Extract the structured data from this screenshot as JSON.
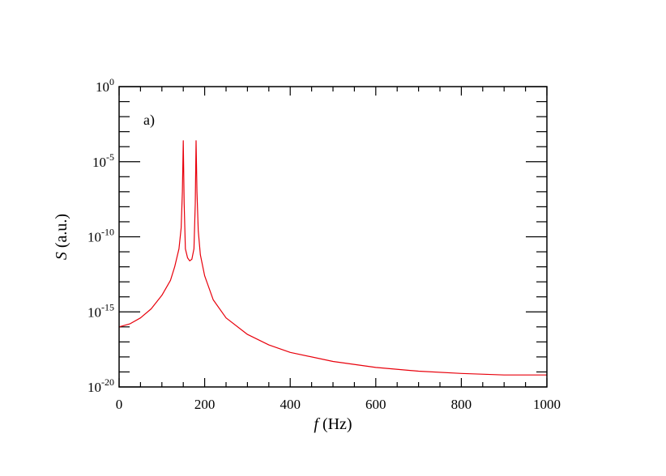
{
  "chart_data": {
    "type": "line",
    "panel_label": "a)",
    "xlabel": {
      "symbol": "f",
      "unit": " (Hz)"
    },
    "ylabel": {
      "symbol": "S",
      "unit": " (a.u.)"
    },
    "xlim": [
      0,
      1000
    ],
    "ylim_log10": [
      -20,
      0
    ],
    "yscale": "log",
    "x_ticks": [
      {
        "value": 0,
        "label": "0"
      },
      {
        "value": 200,
        "label": "200"
      },
      {
        "value": 400,
        "label": "400"
      },
      {
        "value": 600,
        "label": "600"
      },
      {
        "value": 800,
        "label": "800"
      },
      {
        "value": 1000,
        "label": "1000"
      }
    ],
    "y_ticks": [
      {
        "exp": 0,
        "base": "10",
        "sup": "0"
      },
      {
        "exp": -5,
        "base": "10",
        "sup": "-5"
      },
      {
        "exp": -10,
        "base": "10",
        "sup": "-10"
      },
      {
        "exp": -15,
        "base": "10",
        "sup": "-15"
      },
      {
        "exp": -20,
        "base": "10",
        "sup": "-20"
      }
    ],
    "grid": false,
    "series": [
      {
        "color": "#e8000b",
        "x": [
          0,
          25,
          50,
          75,
          100,
          120,
          130,
          140,
          145,
          148,
          150,
          152,
          155,
          160,
          165,
          170,
          175,
          178,
          180,
          182,
          185,
          190,
          200,
          220,
          250,
          300,
          350,
          400,
          500,
          600,
          700,
          800,
          900,
          1000
        ],
        "y_log10": [
          -16.0,
          -15.8,
          -15.4,
          -14.8,
          -13.9,
          -12.9,
          -12.0,
          -10.8,
          -9.4,
          -7.0,
          -3.6,
          -7.8,
          -10.8,
          -11.4,
          -11.6,
          -11.5,
          -10.8,
          -7.8,
          -3.6,
          -7.0,
          -9.6,
          -11.2,
          -12.6,
          -14.2,
          -15.4,
          -16.5,
          -17.2,
          -17.7,
          -18.3,
          -18.7,
          -18.95,
          -19.1,
          -19.2,
          -19.2
        ]
      }
    ]
  }
}
